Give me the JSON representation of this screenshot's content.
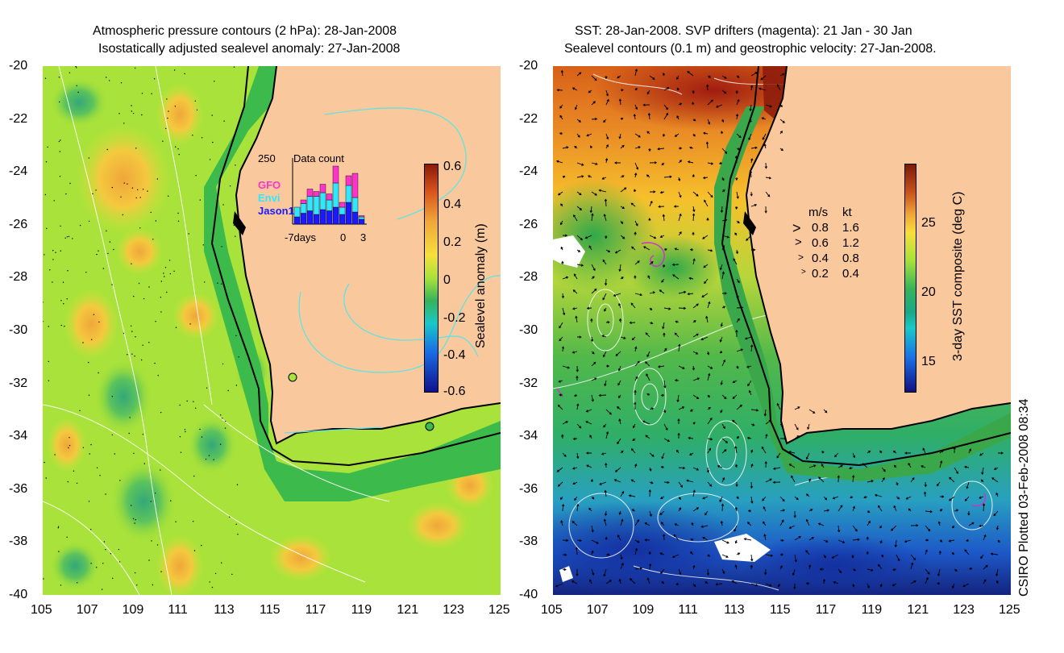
{
  "left_panel": {
    "title_line1": "Atmospheric pressure contours (2 hPa): 28-Jan-2008",
    "title_line2": "Isostatically adjusted sealevel anomaly: 27-Jan-2008",
    "colorbar": {
      "label": "Sealevel anomaly (m)",
      "ticks": [
        "0.6",
        "0.4",
        "0.2",
        "0",
        "-0.2",
        "-0.4",
        "-0.6"
      ],
      "range": [
        -0.6,
        0.6
      ]
    },
    "inset": {
      "title": "Data count",
      "ymax_label": "250",
      "legend": [
        {
          "name": "GFO",
          "color": "#ff33cc"
        },
        {
          "name": "Envi",
          "color": "#33e6ff"
        },
        {
          "name": "Jason1",
          "color": "#1a1aff"
        }
      ],
      "xlabel_left": "-7days",
      "xlabel_mid": "0",
      "xlabel_right": "3",
      "days": [
        -7,
        -6,
        -5,
        -4,
        -3,
        -2,
        -1,
        0,
        1,
        2,
        3
      ],
      "jason1": [
        30,
        45,
        55,
        40,
        60,
        55,
        70,
        40,
        90,
        50,
        20
      ],
      "envi": [
        40,
        40,
        60,
        75,
        70,
        45,
        100,
        30,
        70,
        60,
        10
      ],
      "gfo": [
        0,
        15,
        30,
        20,
        35,
        25,
        70,
        20,
        40,
        100,
        5
      ]
    }
  },
  "right_panel": {
    "title_line1": "SST: 28-Jan-2008. SVP drifters (magenta): 21 Jan - 30 Jan",
    "title_line2": "Sealevel contours (0.1 m) and geostrophic velocity: 27-Jan-2008.",
    "colorbar": {
      "label": "3-day SST composite (deg C)",
      "ticks": [
        "25",
        "20",
        "15"
      ],
      "range": [
        12.5,
        29
      ]
    },
    "velocity_legend": {
      "header_ms": "m/s",
      "header_kt": "kt",
      "rows": [
        {
          "ms": "0.8",
          "kt": "1.6"
        },
        {
          "ms": "0.6",
          "kt": "1.2"
        },
        {
          "ms": "0.4",
          "kt": "0.8"
        },
        {
          "ms": "0.2",
          "kt": "0.4"
        }
      ]
    }
  },
  "axes": {
    "lat_ticks": [
      "-20",
      "-22",
      "-24",
      "-26",
      "-28",
      "-30",
      "-32",
      "-34",
      "-36",
      "-38",
      "-40"
    ],
    "lon_ticks": [
      "105",
      "107",
      "109",
      "111",
      "113",
      "115",
      "117",
      "119",
      "121",
      "123",
      "125"
    ],
    "lat_range": [
      -40,
      -20
    ],
    "lon_range": [
      105,
      125
    ]
  },
  "credit": "CSIRO Plotted 03-Feb-2008 08:34",
  "colors": {
    "land": "#f9c89d",
    "coast": "#000000",
    "pressure_contour": "#55e6e6",
    "drifter": "#cc33cc"
  }
}
